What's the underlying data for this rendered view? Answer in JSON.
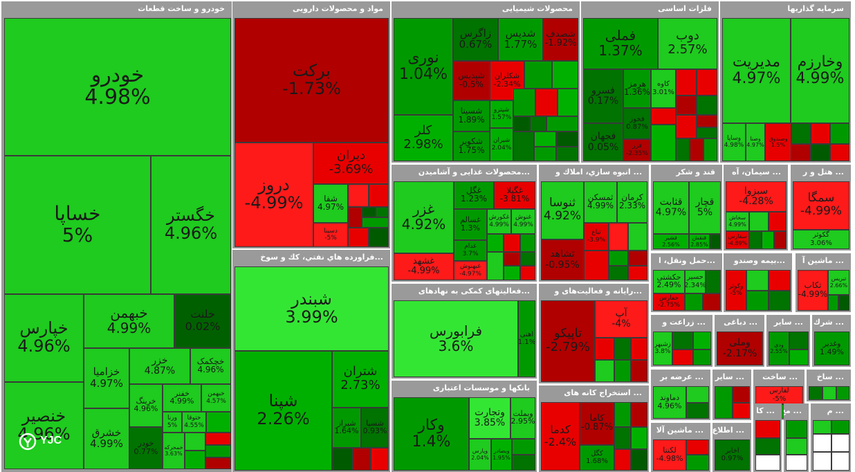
{
  "colors": {
    "g5": "#1ecb1e",
    "g4": "#34e634",
    "g3": "#00b000",
    "g2": "#009a00",
    "g1": "#007300",
    "g0": "#005a00",
    "r1": "#b00000",
    "r2": "#e80000",
    "r3": "#ff1a1a",
    "grid": "#3a3a3a",
    "header": "#9a9a9a"
  },
  "sectors": {
    "s1": "خودرو و ساخت قطعات",
    "s2": "مواد و محصولات دارویی",
    "s3": "محصولات شیمیایی",
    "s4": "فلزات اساسی",
    "s5": "سرمایه گذاریها",
    "s6": "...فراورده هاي نفتي، كك و سوخ",
    "s7": "...محصولات غذایی و آشامیدن",
    "s8": "... انبوه سازي، املاك و",
    "s9": "قند و شکر",
    "s10": "... سیمان، آه",
    "s11": "... هتل و ر",
    "s12": "...فعالیتهای کمکی به نهادهای",
    "s13": "...حمل ونقل، ا",
    "s14": "...بیمه وصندو",
    "s15": "... ماشین آ",
    "s16": "...رایانه و فعالیت‌های و",
    "s17": "... زراعت و",
    "s18": "... دباغی",
    "s19": "... سایر",
    "s20": "... شرك",
    "s21": "بانکها و موسسات اعتباری",
    "s22": "... استخراج کانه های",
    "s23": "... عرضه بر",
    "s24": "... سایر",
    "s25": "... ساخت",
    "s26": "... ساخ",
    "s27": "... ماشین آلا",
    "s28": "... اطلاع",
    "s29": "... کا",
    "s30": "... مح",
    "s31": "... م"
  },
  "stocks": {
    "khodro": {
      "n": "خودرو",
      "p": "4.98%"
    },
    "khsapa": {
      "n": "خساپا",
      "p": "5%"
    },
    "khgostar": {
      "n": "خگستر",
      "p": "4.96%"
    },
    "khpars": {
      "n": "خپارس",
      "p": "4.96%"
    },
    "khbahman": {
      "n": "خبهمن",
      "p": "4.99%"
    },
    "khlent": {
      "n": "خلنت",
      "p": "0.02%"
    },
    "khzamia": {
      "n": "خزامیا",
      "p": "4.97%"
    },
    "khazar": {
      "n": "خزر",
      "p": "4.87%"
    },
    "khchmak": {
      "n": "خچکمک",
      "p": "4.96%"
    },
    "khnasir": {
      "n": "خنصیر",
      "p": "4.96%"
    },
    "khsharq": {
      "n": "خشرق",
      "p": "4.99%"
    },
    "khring": {
      "n": "خرینگ",
      "p": "4.96%"
    },
    "khfanar": {
      "n": "خفنر",
      "p": "4.99%"
    },
    "khbahman2": {
      "n": "خبهمن",
      "p": "4.57%"
    },
    "khzr": {
      "n": "خودر",
      "p": "0.77%"
    },
    "khtog": {
      "n": "ختوقا",
      "p": "4.55%"
    },
    "khmhrk": {
      "n": "خمحرکه",
      "p": "3.63%"
    },
    "khvira": {
      "n": "ورنا",
      "p": "5%"
    },
    "barekat": {
      "n": "برکت",
      "p": "-1.73%"
    },
    "darooz": {
      "n": "دروز",
      "p": "-4.99%"
    },
    "deran": {
      "n": "دیران",
      "p": "-3.69%"
    },
    "shafa": {
      "n": "شفا",
      "p": "4.97%"
    },
    "dsina": {
      "n": "دسینا",
      "p": "-5%"
    },
    "noori": {
      "n": "نوری",
      "p": "1.04%"
    },
    "zagros": {
      "n": "زاگرس",
      "p": "0.67%"
    },
    "shadis": {
      "n": "شدیس",
      "p": "1.77%"
    },
    "shasfa": {
      "n": "شصدف",
      "p": "-1.92%"
    },
    "kelar": {
      "n": "کلر",
      "p": "2.98%"
    },
    "shepdis": {
      "n": "شپدیس",
      "p": "-0.5%"
    },
    "shaklran": {
      "n": "شکلران",
      "p": "-2.34%"
    },
    "shsina": {
      "n": "شسینا",
      "p": "1.89%"
    },
    "shkavir": {
      "n": "شکویر",
      "p": "1.75%"
    },
    "shsahand": {
      "n": "شپترو",
      "p": "1.57%"
    },
    "shiran": {
      "n": "شیران",
      "p": "2.04%"
    },
    "fameli": {
      "n": "فملی",
      "p": "1.37%"
    },
    "doob": {
      "n": "دوب",
      "p": "2.57%"
    },
    "fsorvar": {
      "n": "فسرو",
      "p": "0.17%"
    },
    "hormoz": {
      "n": "هرمز",
      "p": "1.36%"
    },
    "kave": {
      "n": "کاوه",
      "p": "3.01%"
    },
    "fkhouz": {
      "n": "فخوز",
      "p": "0.87%"
    },
    "fjahan": {
      "n": "فجهان",
      "p": "0.05%"
    },
    "fazar": {
      "n": "فزر",
      "p": "-2.35%"
    },
    "vkharazm": {
      "n": "وخارزم",
      "p": "4.99%"
    },
    "modiriat": {
      "n": "مدیریت",
      "p": "4.97%"
    },
    "vsapa": {
      "n": "وساپا",
      "p": "4.98%"
    },
    "vsina": {
      "n": "وصنا",
      "p": "4.97%"
    },
    "vsnd": {
      "n": "وصندوق",
      "p": "1.5%"
    },
    "shabandar": {
      "n": "شبندر",
      "p": "3.99%"
    },
    "shepna": {
      "n": "شپنا",
      "p": "2.26%"
    },
    "shetran": {
      "n": "شتران",
      "p": "2.73%"
    },
    "shraz": {
      "n": "شیراز",
      "p": "1.64%"
    },
    "shsalmr": {
      "n": "شسپا",
      "p": "0.93%"
    },
    "ghazar": {
      "n": "غزر",
      "p": "4.92%"
    },
    "gnagol": {
      "n": "غگل",
      "p": "1.23%"
    },
    "gbila": {
      "n": "غگیلا",
      "p": "-3.81%"
    },
    "gsalem": {
      "n": "غسالم",
      "p": "1.3%"
    },
    "gakhbar": {
      "n": "غکورش",
      "p": "4.99%"
    },
    "gnoosh": {
      "n": "غنوش",
      "p": "4.99%"
    },
    "ghadir": {
      "n": "غدام",
      "p": "3.7%"
    },
    "gbehpak": {
      "n": "غبهنوش",
      "p": "-4.97%"
    },
    "gshahd": {
      "n": "غشهد",
      "p": "-4.99%"
    },
    "thousa": {
      "n": "ثنوسا",
      "p": "4.92%"
    },
    "tmaskan": {
      "n": "ثمسکن",
      "p": "4.99%"
    },
    "tkerman": {
      "n": "کرمان",
      "p": "2.33%"
    },
    "tshahd": {
      "n": "ثشاهد",
      "p": "-0.95%"
    },
    "tbaran": {
      "n": "ثباغ",
      "p": "-3.9%"
    },
    "qatan": {
      "n": "قثابت",
      "p": "4.97%"
    },
    "qajar": {
      "n": "قچار",
      "p": "5%"
    },
    "qshin": {
      "n": "قشیر",
      "p": "2.56%"
    },
    "qnesh": {
      "n": "قنقش",
      "p": "2.85%"
    },
    "sebir": {
      "n": "سبزوا",
      "p": "-4.28%"
    },
    "sshah": {
      "n": "سخاش",
      "p": "4.99%"
    },
    "sfarsi": {
      "n": "سفارس",
      "p": "-4.89%"
    },
    "samga": {
      "n": "سمگا",
      "p": "-4.99%"
    },
    "kgor": {
      "n": "گکوثر",
      "p": "3.06%"
    },
    "faraboors": {
      "n": "فرابورس",
      "p": "3.6%"
    },
    "ahmi": {
      "n": "اهنی",
      "p": "1.1%"
    },
    "hakeshti": {
      "n": "حکشتی",
      "p": "2.49%"
    },
    "hsir": {
      "n": "حسیر",
      "p": "2.34%"
    },
    "hfars": {
      "n": "حفارس",
      "p": "-2.75%"
    },
    "vkaveh": {
      "n": "وکوثر",
      "p": "-5%"
    },
    "tekab": {
      "n": "تکاب",
      "p": "-4.99%"
    },
    "tbris": {
      "n": "تبریس",
      "p": "2.66%"
    },
    "taptech": {
      "n": "تاپیکو",
      "p": "-2.79%"
    },
    "ap": {
      "n": "آپ",
      "p": "-4%"
    },
    "zsbeh": {
      "n": "زشبهر",
      "p": "3.8%"
    },
    "vmeli": {
      "n": "وملی",
      "p": "-2.17%"
    },
    "vdey": {
      "n": "ودی",
      "p": "2.55%"
    },
    "vgadir": {
      "n": "وغدیر",
      "p": "1.49%"
    },
    "vkar": {
      "n": "وکار",
      "p": "1.4%"
    },
    "vtejarat": {
      "n": "وتجارت",
      "p": "3.85%"
    },
    "vbmlt": {
      "n": "وبملت",
      "p": "2.95%"
    },
    "vparsian": {
      "n": "وپارس",
      "p": "2.04%"
    },
    "vbhe": {
      "n": "وبصادر",
      "p": "1.95%"
    },
    "kadma": {
      "n": "کدما",
      "p": "-2.4%"
    },
    "kamaa": {
      "n": "کاما",
      "p": "-0.87%"
    },
    "kgol": {
      "n": "کگل",
      "p": "1.68%"
    },
    "damavand": {
      "n": "دماوند",
      "p": "4.96%"
    },
    "kganj": {
      "n": "لکنتا",
      "p": "-4.98%"
    },
    "akhtar": {
      "n": "اخابر",
      "p": "0.97%"
    },
    "lfars": {
      "n": "لفارس",
      "p": "-5%"
    }
  },
  "logo": {
    "text": "YJC"
  }
}
